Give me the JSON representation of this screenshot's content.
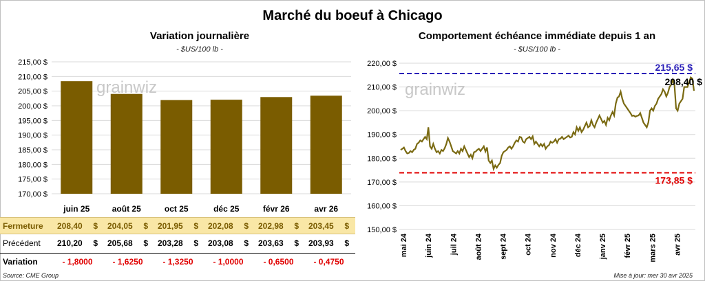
{
  "title": "Marché du boeuf à Chicago",
  "colors": {
    "bar": "#7a5c00",
    "line": "#7a6a12",
    "high": "#2a1fb8",
    "low": "#e00000",
    "closing_bg": "#f9e7a6"
  },
  "chart_data": [
    {
      "type": "bar",
      "title": "Variation  journalière",
      "subtitle": "- $US/100 lb -",
      "categories": [
        "juin 25",
        "août 25",
        "oct 25",
        "déc 25",
        "févr 26",
        "avr 26"
      ],
      "values": [
        208.4,
        204.05,
        201.95,
        202.08,
        202.98,
        203.45
      ],
      "ylim": [
        170,
        215
      ],
      "yticks": [
        "170,00 $",
        "175,00 $",
        "180,00 $",
        "185,00 $",
        "190,00 $",
        "195,00 $",
        "200,00 $",
        "205,00 $",
        "210,00 $",
        "215,00 $"
      ],
      "watermark": "grainwiz",
      "grid": true
    },
    {
      "type": "line",
      "title": "Comportement  échéance immédiate depuis 1 an",
      "subtitle": "- $US/100 lb -",
      "ylim": [
        150,
        220
      ],
      "yticks": [
        "150,00 $",
        "160,00 $",
        "170,00 $",
        "180,00 $",
        "190,00 $",
        "200,00 $",
        "210,00 $",
        "220,00 $"
      ],
      "xticks": [
        "mai 24",
        "juin 24",
        "juil 24",
        "août 24",
        "sept 24",
        "oct 24",
        "nov 24",
        "déc 24",
        "janv 25",
        "févr 25",
        "mars 25",
        "avr 25"
      ],
      "watermark": "grainwiz",
      "reference_lines": [
        {
          "value": 215.65,
          "label": "215,65 $",
          "color": "#2a1fb8"
        },
        {
          "value": 173.85,
          "label": "173,85 $",
          "color": "#e00000"
        }
      ],
      "last_label": "208,40 $",
      "series": [
        {
          "values": [
            183.5,
            184,
            184.5,
            183,
            182,
            182.2,
            183,
            182.5,
            183.5,
            184,
            186,
            186.5,
            187.5,
            187,
            188,
            189,
            188,
            193,
            185,
            184,
            186,
            184,
            182.5,
            183,
            182,
            183.5,
            183,
            184.2,
            186,
            188.5,
            187,
            185,
            183,
            182.5,
            182,
            183,
            182,
            184,
            183,
            185,
            183.5,
            182,
            180.5,
            181.5,
            180,
            182.5,
            182.8,
            183.5,
            184,
            183,
            184,
            185,
            182.8,
            184.5,
            179,
            178,
            179,
            175.5,
            177,
            176,
            177.2,
            178,
            181,
            182.5,
            183,
            183.5,
            184.5,
            185,
            184,
            185,
            186.5,
            187.5,
            187,
            189,
            188.8,
            187,
            186.5,
            188,
            188.5,
            189,
            188,
            189.2,
            186,
            187,
            186,
            185,
            186,
            185,
            186,
            184,
            185,
            185.5,
            187,
            186.5,
            187,
            188,
            186.5,
            188,
            188.2,
            189,
            188,
            188.5,
            189,
            189.5,
            188.7,
            189,
            191,
            190,
            193,
            191.5,
            193,
            191,
            192,
            193.5,
            195,
            193,
            193.5,
            196,
            194,
            193,
            195,
            196.5,
            198,
            196.5,
            195,
            195.7,
            194,
            197,
            196,
            198,
            199.5,
            198,
            203,
            205.5,
            206,
            208,
            205,
            203,
            202,
            201,
            200,
            199,
            197.8,
            198,
            197.5,
            197.8,
            198,
            199,
            197,
            195,
            194,
            193,
            195,
            200,
            201,
            200,
            202,
            203,
            205,
            206,
            207,
            209,
            208,
            206,
            207.5,
            210,
            211,
            213,
            211,
            201,
            200,
            203,
            204,
            205,
            210,
            210,
            210,
            212,
            214,
            213.5,
            208.4
          ]
        }
      ]
    }
  ],
  "table": {
    "closing_label": "Fermeture",
    "previous_label": "Précédent",
    "variation_label": "Variation",
    "closing": [
      "208,40",
      "204,05",
      "201,95",
      "202,08",
      "202,98",
      "203,45"
    ],
    "previous": [
      "210,20",
      "205,68",
      "203,28",
      "203,08",
      "203,63",
      "203,93"
    ],
    "variation": [
      "- 1,8000",
      "- 1,6250",
      "- 1,3250",
      "- 1,0000",
      "- 0,6500",
      "- 0,4750"
    ],
    "currency": "$"
  },
  "footer": {
    "source": "Source: CME Group",
    "updated": "Mise à jour: mer 30 avr 2025"
  }
}
